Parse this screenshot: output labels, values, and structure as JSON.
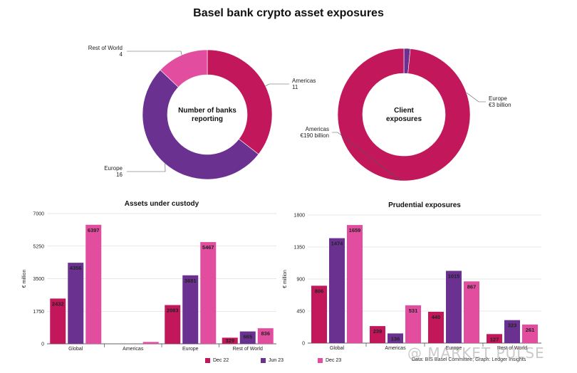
{
  "title": "Basel bank crypto asset exposures",
  "colors": {
    "dec22": "#c2185b",
    "jun23": "#6a3191",
    "dec23": "#e34da0",
    "grid": "#d0d0d0",
    "axis": "#333333"
  },
  "watermark": "@ MARKET PULSE",
  "source": "Data: BIS Basel Committee; Graph: Ledger Insights",
  "chart_data": [
    {
      "type": "pie",
      "center_label": "Number of banks reporting",
      "center_lines": [
        "Number of banks",
        "reporting"
      ],
      "slices": [
        {
          "name": "Americas",
          "value": 11,
          "value_text": "11",
          "color": "#c2185b"
        },
        {
          "name": "Europe",
          "value": 16,
          "value_text": "16",
          "color": "#6a3191"
        },
        {
          "name": "Rest of World",
          "value": 4,
          "value_text": "4",
          "color": "#e34da0"
        }
      ]
    },
    {
      "type": "pie",
      "center_label": "Client exposures",
      "center_lines": [
        "Client",
        "exposures"
      ],
      "slices": [
        {
          "name": "Europe",
          "value": 3,
          "value_text": "€3 billion",
          "color": "#6a3191"
        },
        {
          "name": "Americas",
          "value": 190,
          "value_text": "€190 billion",
          "color": "#c2185b"
        }
      ]
    },
    {
      "type": "bar",
      "title": "Assets under custody",
      "ylabel": "€ million",
      "ylim": [
        0,
        7000
      ],
      "yticks": [
        0,
        1750,
        3500,
        5250,
        7000
      ],
      "categories": [
        "Global",
        "Americas",
        "Europe",
        "Rest of World"
      ],
      "series": [
        {
          "name": "Dec 22",
          "values": [
            2432,
            0,
            2083,
            329
          ]
        },
        {
          "name": "Jun 23",
          "values": [
            4356,
            0,
            3681,
            665
          ]
        },
        {
          "name": "Dec 23",
          "values": [
            6397,
            100,
            5467,
            836
          ]
        }
      ],
      "data_labels": [
        [
          "2432",
          "",
          "2083",
          "329"
        ],
        [
          "4356",
          "",
          "3681",
          "665"
        ],
        [
          "6397",
          "",
          "5467",
          "836"
        ]
      ]
    },
    {
      "type": "bar",
      "title": "Prudential exposures",
      "ylabel": "€ million",
      "ylim": [
        0,
        1800
      ],
      "yticks": [
        0,
        450,
        900,
        1350,
        1800
      ],
      "categories": [
        "Global",
        "Americas",
        "Europe",
        "Rest of World"
      ],
      "series": [
        {
          "name": "Dec 22",
          "values": [
            806,
            239,
            440,
            127
          ]
        },
        {
          "name": "Jun 23",
          "values": [
            1474,
            136,
            1015,
            323
          ]
        },
        {
          "name": "Dec 23",
          "values": [
            1659,
            531,
            867,
            261
          ]
        }
      ],
      "data_labels": [
        [
          "806",
          "239",
          "440",
          "127"
        ],
        [
          "1474",
          "136",
          "1015",
          "323"
        ],
        [
          "1659",
          "531",
          "867",
          "261"
        ]
      ]
    }
  ],
  "legend": [
    {
      "label": "Dec 22",
      "color": "#c2185b"
    },
    {
      "label": "Jun 23",
      "color": "#6a3191"
    },
    {
      "label": "Dec 23",
      "color": "#e34da0"
    }
  ]
}
